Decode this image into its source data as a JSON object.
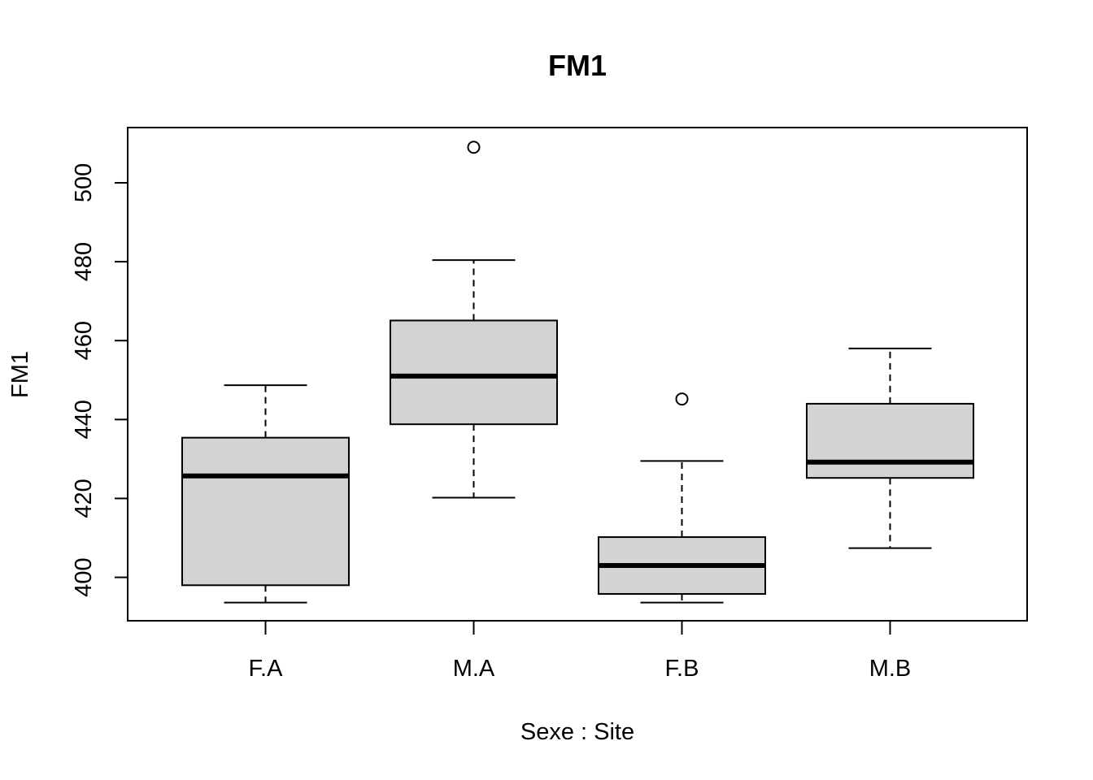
{
  "chart_data": {
    "type": "boxplot",
    "title": "FM1",
    "xlabel": "Sexe : Site",
    "ylabel": "FM1",
    "ylim": [
      389,
      514
    ],
    "yticks": [
      400,
      420,
      440,
      460,
      480,
      500
    ],
    "categories": [
      "F.A",
      "M.A",
      "F.B",
      "M.B"
    ],
    "boxes": [
      {
        "category": "F.A",
        "whisker_low": 393.6,
        "q1": 398.0,
        "median": 425.7,
        "q3": 435.4,
        "whisker_high": 448.7,
        "outliers": []
      },
      {
        "category": "M.A",
        "whisker_low": 420.2,
        "q1": 438.8,
        "median": 451.0,
        "q3": 465.1,
        "whisker_high": 480.4,
        "outliers": [
          509.0
        ]
      },
      {
        "category": "F.B",
        "whisker_low": 393.6,
        "q1": 395.8,
        "median": 403.0,
        "q3": 410.2,
        "whisker_high": 429.5,
        "outliers": [
          445.2
        ]
      },
      {
        "category": "M.B",
        "whisker_low": 407.4,
        "q1": 425.2,
        "median": 429.2,
        "q3": 444.0,
        "whisker_high": 458.0,
        "outliers": []
      }
    ],
    "box_fill": "#d3d3d3",
    "grid": false,
    "legend": "none"
  }
}
